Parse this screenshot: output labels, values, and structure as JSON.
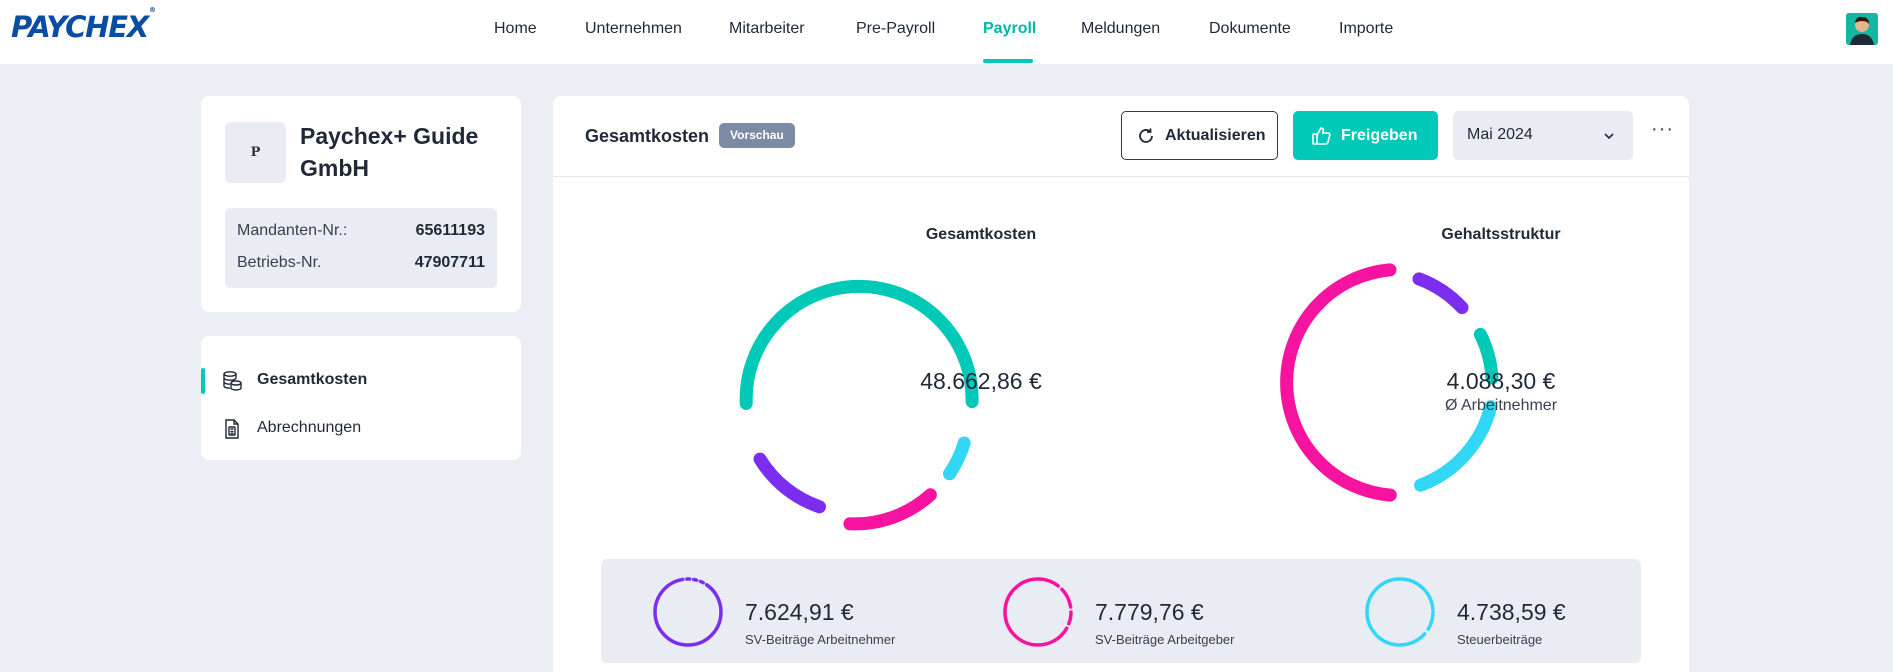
{
  "brand": {
    "logo_text": "PAYCHEX",
    "accent": "#00c9b7",
    "logo_color": "#0a4ea3"
  },
  "nav": {
    "items": [
      {
        "label": "Home"
      },
      {
        "label": "Unternehmen"
      },
      {
        "label": "Mitarbeiter"
      },
      {
        "label": "Pre-Payroll"
      },
      {
        "label": "Payroll",
        "active": true
      },
      {
        "label": "Meldungen"
      },
      {
        "label": "Dokumente"
      },
      {
        "label": "Importe"
      }
    ]
  },
  "company": {
    "logo_letter": "P",
    "name": "Paychex+ Guide GmbH",
    "mandant_label": "Mandanten-Nr.:",
    "mandant_value": "65611193",
    "betrieb_label": "Betriebs-Nr.",
    "betrieb_value": "47907711"
  },
  "side_menu": {
    "items": [
      {
        "label": "Gesamtkosten",
        "icon": "coins-stack-icon",
        "active": true
      },
      {
        "label": "Abrechnungen",
        "icon": "document-calculator-icon"
      }
    ]
  },
  "main": {
    "title": "Gesamtkosten",
    "badge": "Vorschau",
    "refresh_label": "Aktualisieren",
    "release_label": "Freigeben",
    "month": "Mai 2024",
    "more": "···"
  },
  "charts": {
    "total": {
      "title": "Gesamtkosten",
      "value": "48.662,86 €"
    },
    "structure": {
      "title": "Gehaltsstruktur",
      "value": "4.088,30 €",
      "sub": "Ø Arbeitnehmer"
    }
  },
  "summary": [
    {
      "value": "7.624,91 €",
      "label": "SV-Beiträge Arbeitnehmer",
      "color": "#7c2ef0"
    },
    {
      "value": "7.779,76 €",
      "label": "SV-Beiträge Arbeitgeber",
      "color": "#f5139f"
    },
    {
      "value": "4.738,59 €",
      "label": "Steuerbeiträge",
      "color": "#31d7f5"
    }
  ],
  "colors": {
    "teal": "#00c9b7",
    "cyan": "#31d7f5",
    "pink": "#f5139f",
    "purple": "#7c2ef0"
  }
}
